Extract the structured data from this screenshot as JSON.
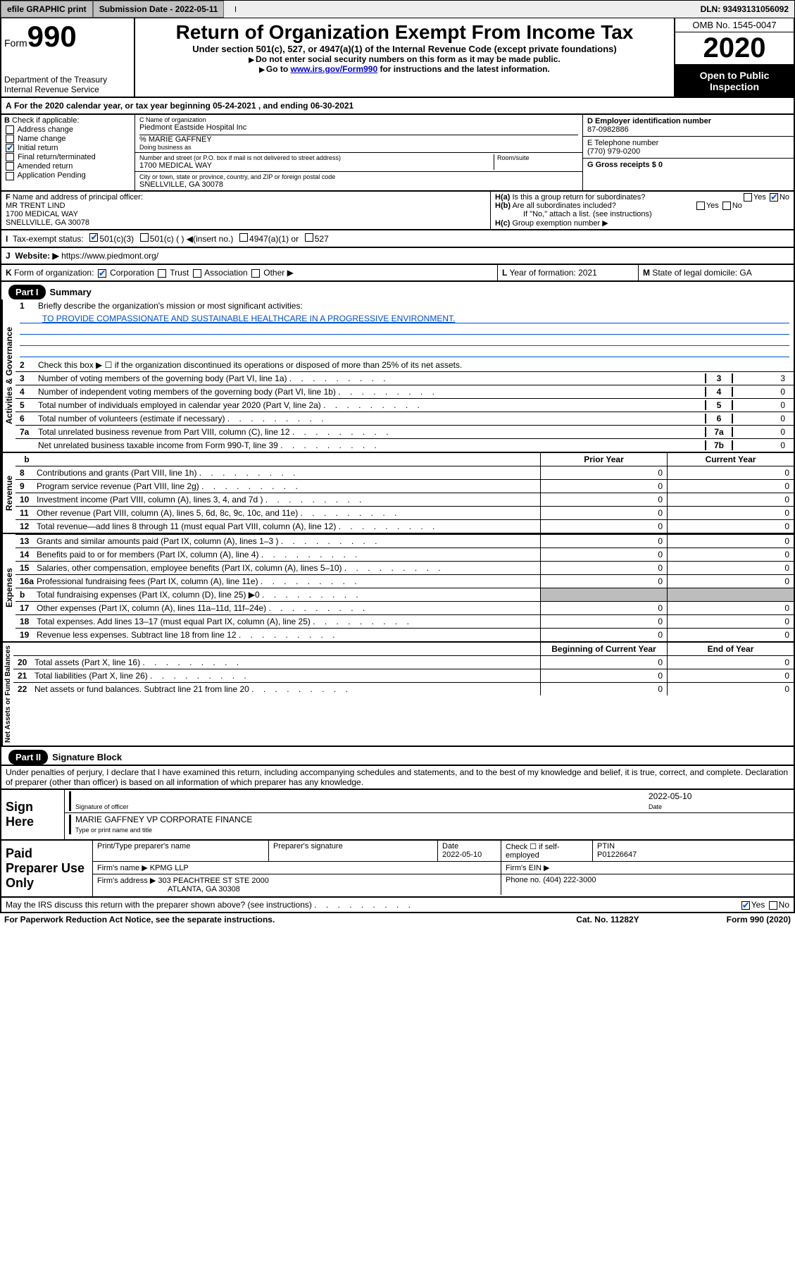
{
  "topbar": {
    "efile": "efile GRAPHIC print",
    "submission_label": "Submission Date - 2022-05-11",
    "dln": "DLN: 93493131056092"
  },
  "header": {
    "form_word": "Form",
    "form_num": "990",
    "dept": "Department of the Treasury\nInternal Revenue Service",
    "title": "Return of Organization Exempt From Income Tax",
    "subtitle": "Under section 501(c), 527, or 4947(a)(1) of the Internal Revenue Code (except private foundations)",
    "pointer1": "Do not enter social security numbers on this form as it may be made public.",
    "pointer2_pre": "Go to ",
    "pointer2_link": "www.irs.gov/Form990",
    "pointer2_post": " for instructions and the latest information.",
    "omb": "OMB No. 1545-0047",
    "year": "2020",
    "open": "Open to Public Inspection"
  },
  "section_a": {
    "tax_year": "For the 2020 calendar year, or tax year beginning 05-24-2021    , and ending 06-30-2021",
    "b_label": "Check if applicable:",
    "b_items": [
      "Address change",
      "Name change",
      "Initial return",
      "Final return/terminated",
      "Amended return",
      "Application Pending"
    ],
    "c_label": "C Name of organization",
    "c_name": "Piedmont Eastside Hospital Inc",
    "care_of_label": "% MARIE GAFFNEY",
    "dba_label": "Doing business as",
    "street_label": "Number and street (or P.O. box if mail is not delivered to street address)",
    "street": "1700 MEDICAL WAY",
    "room_label": "Room/suite",
    "city_label": "City or town, state or province, country, and ZIP or foreign postal code",
    "city": "SNELLVILLE, GA  30078",
    "d_label": "D Employer identification number",
    "d_val": "87-0982886",
    "e_label": "E Telephone number",
    "e_val": "(770) 979-0200",
    "g_label": "G Gross receipts $ 0"
  },
  "principal": {
    "f_label": "Name and address of principal officer:",
    "f_name": "MR TRENT LIND",
    "f_addr1": "1700 MEDICAL WAY",
    "f_addr2": "SNELLVILLE, GA  30078",
    "ha": "Is this a group return for subordinates?",
    "hb": "Are all subordinates included?",
    "hb_note": "If \"No,\" attach a list. (see instructions)",
    "hc": "Group exemption number ▶",
    "yes": "Yes",
    "no": "No"
  },
  "status": {
    "label": "Tax-exempt status:",
    "opt1": "501(c)(3)",
    "opt2": "501(c) (   ) ◀(insert no.)",
    "opt3": "4947(a)(1) or",
    "opt4": "527"
  },
  "website": {
    "label": "Website: ▶",
    "url": "https://www.piedmont.org/"
  },
  "k_row": {
    "k": "Form of organization:",
    "corp": "Corporation",
    "trust": "Trust",
    "assoc": "Association",
    "other": "Other ▶",
    "l": "Year of formation: 2021",
    "m": "State of legal domicile: GA"
  },
  "part1": {
    "hdr": "Part I",
    "title": "Summary",
    "q1": "Briefly describe the organization's mission or most significant activities:",
    "mission": "TO PROVIDE COMPASSIONATE AND SUSTAINABLE HEALTHCARE IN A PROGRESSIVE ENVIRONMENT.",
    "q2": "Check this box ▶ ☐  if the organization discontinued its operations or disposed of more than 25% of its net assets.",
    "lines": [
      {
        "n": "3",
        "t": "Number of voting members of the governing body (Part VI, line 1a)",
        "box": "3",
        "v": "3"
      },
      {
        "n": "4",
        "t": "Number of independent voting members of the governing body (Part VI, line 1b)",
        "box": "4",
        "v": "0"
      },
      {
        "n": "5",
        "t": "Total number of individuals employed in calendar year 2020 (Part V, line 2a)",
        "box": "5",
        "v": "0"
      },
      {
        "n": "6",
        "t": "Total number of volunteers (estimate if necessary)",
        "box": "6",
        "v": "0"
      },
      {
        "n": "7a",
        "t": "Total unrelated business revenue from Part VIII, column (C), line 12",
        "box": "7a",
        "v": "0"
      },
      {
        "n": "",
        "t": "Net unrelated business taxable income from Form 990-T, line 39",
        "box": "7b",
        "v": "0"
      }
    ],
    "vlabel_gov": "Activities & Governance",
    "vlabel_rev": "Revenue",
    "vlabel_exp": "Expenses",
    "vlabel_net": "Net Assets or Fund Balances",
    "col_prior": "Prior Year",
    "col_curr": "Current Year",
    "col_beg": "Beginning of Current Year",
    "col_end": "End of Year",
    "rev": [
      {
        "n": "8",
        "t": "Contributions and grants (Part VIII, line 1h)",
        "p": "0",
        "c": "0"
      },
      {
        "n": "9",
        "t": "Program service revenue (Part VIII, line 2g)",
        "p": "0",
        "c": "0"
      },
      {
        "n": "10",
        "t": "Investment income (Part VIII, column (A), lines 3, 4, and 7d )",
        "p": "0",
        "c": "0"
      },
      {
        "n": "11",
        "t": "Other revenue (Part VIII, column (A), lines 5, 6d, 8c, 9c, 10c, and 11e)",
        "p": "0",
        "c": "0"
      },
      {
        "n": "12",
        "t": "Total revenue—add lines 8 through 11 (must equal Part VIII, column (A), line 12)",
        "p": "0",
        "c": "0"
      }
    ],
    "exp": [
      {
        "n": "13",
        "t": "Grants and similar amounts paid (Part IX, column (A), lines 1–3 )",
        "p": "0",
        "c": "0"
      },
      {
        "n": "14",
        "t": "Benefits paid to or for members (Part IX, column (A), line 4)",
        "p": "0",
        "c": "0"
      },
      {
        "n": "15",
        "t": "Salaries, other compensation, employee benefits (Part IX, column (A), lines 5–10)",
        "p": "0",
        "c": "0"
      },
      {
        "n": "16a",
        "t": "Professional fundraising fees (Part IX, column (A), line 11e)",
        "p": "0",
        "c": "0"
      },
      {
        "n": "b",
        "t": "Total fundraising expenses (Part IX, column (D), line 25) ▶0",
        "p": "",
        "c": "",
        "shade": true
      },
      {
        "n": "17",
        "t": "Other expenses (Part IX, column (A), lines 11a–11d, 11f–24e)",
        "p": "0",
        "c": "0"
      },
      {
        "n": "18",
        "t": "Total expenses. Add lines 13–17 (must equal Part IX, column (A), line 25)",
        "p": "0",
        "c": "0"
      },
      {
        "n": "19",
        "t": "Revenue less expenses. Subtract line 18 from line 12",
        "p": "0",
        "c": "0"
      }
    ],
    "net": [
      {
        "n": "20",
        "t": "Total assets (Part X, line 16)",
        "p": "0",
        "c": "0"
      },
      {
        "n": "21",
        "t": "Total liabilities (Part X, line 26)",
        "p": "0",
        "c": "0"
      },
      {
        "n": "22",
        "t": "Net assets or fund balances. Subtract line 21 from line 20",
        "p": "0",
        "c": "0"
      }
    ]
  },
  "part2": {
    "hdr": "Part II",
    "title": "Signature Block",
    "decl": "Under penalties of perjury, I declare that I have examined this return, including accompanying schedules and statements, and to the best of my knowledge and belief, it is true, correct, and complete. Declaration of preparer (other than officer) is based on all information of which preparer has any knowledge.",
    "sign_here": "Sign Here",
    "sig_officer": "Signature of officer",
    "sig_date": "2022-05-10",
    "date_lbl": "Date",
    "officer_name": "MARIE GAFFNEY VP CORPORATE FINANCE",
    "type_lbl": "Type or print name and title"
  },
  "preparer": {
    "label": "Paid Preparer Use Only",
    "cols": [
      "Print/Type preparer's name",
      "Preparer's signature",
      "Date",
      "",
      "PTIN"
    ],
    "date": "2022-05-10",
    "check_lbl": "Check ☐ if self-employed",
    "ptin": "P01226647",
    "firm_name_lbl": "Firm's name     ▶",
    "firm_name": "KPMG LLP",
    "firm_ein_lbl": "Firm's EIN ▶",
    "firm_addr_lbl": "Firm's address ▶",
    "firm_addr1": "303 PEACHTREE ST STE 2000",
    "firm_addr2": "ATLANTA, GA  30308",
    "phone_lbl": "Phone no. (404) 222-3000"
  },
  "discuss": {
    "q": "May the IRS discuss this return with the preparer shown above? (see instructions)",
    "yes": "Yes",
    "no": "No"
  },
  "footer": {
    "left": "For Paperwork Reduction Act Notice, see the separate instructions.",
    "mid": "Cat. No. 11282Y",
    "right": "Form 990 (2020)"
  },
  "colors": {
    "link": "#0000cc",
    "blue": "#0050d0",
    "shade": "#bdbdbd"
  }
}
